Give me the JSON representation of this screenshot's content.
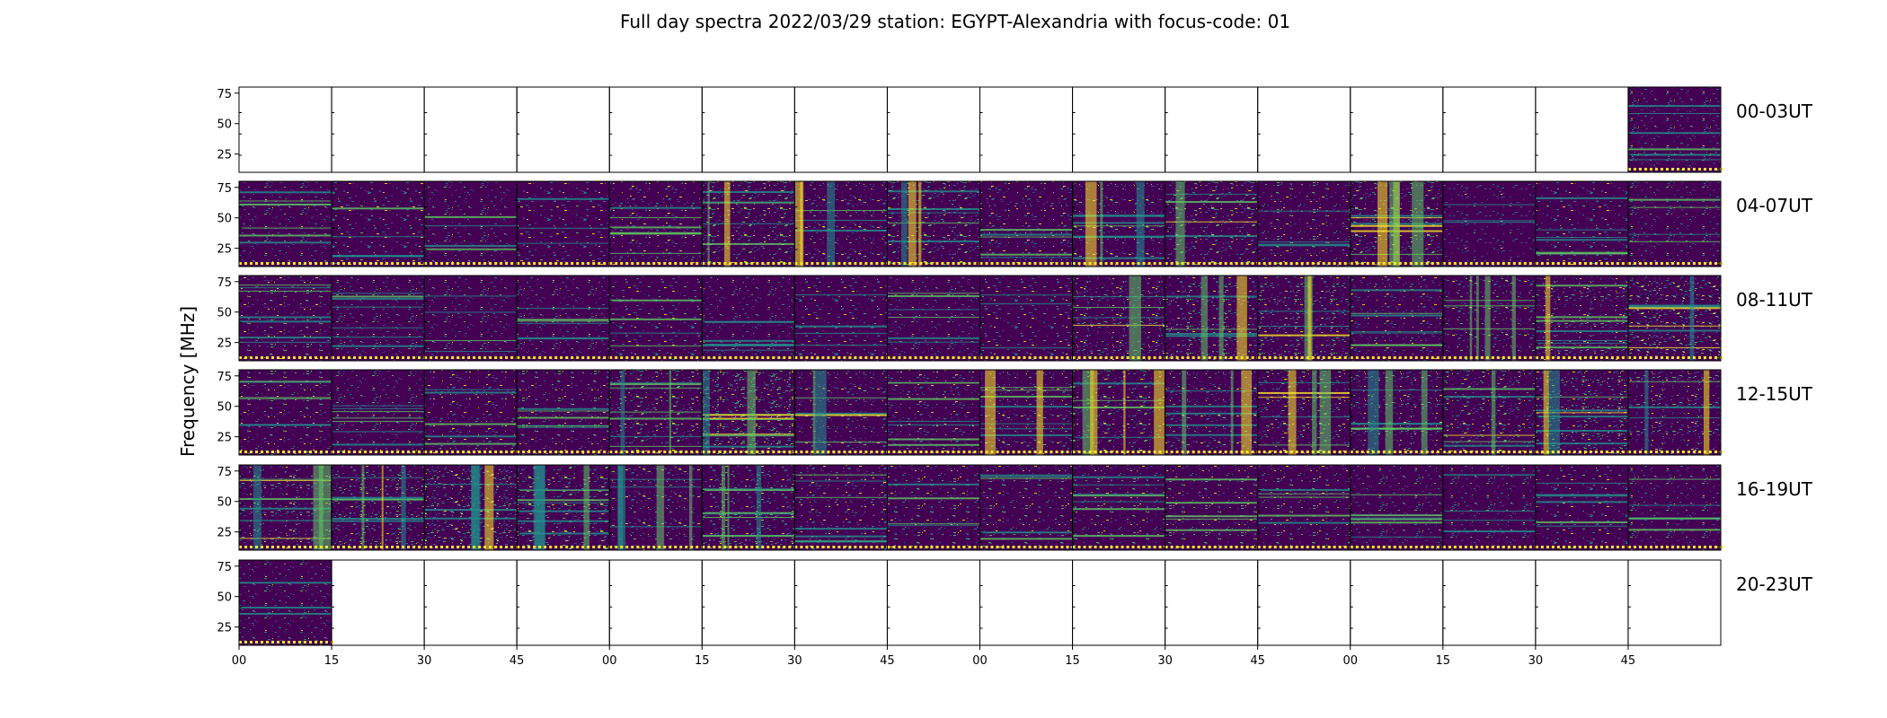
{
  "chart_data": {
    "type": "heatmap",
    "title": "Full day spectra 2022/03/29 station: EGYPT-Alexandria with focus-code: 01",
    "ylabel": "Frequency [MHz]",
    "xlabel": "",
    "y_ticks": [
      "75",
      "50",
      "25"
    ],
    "y_tick_values": [
      75,
      50,
      25
    ],
    "ylim": [
      10,
      80
    ],
    "x_ticks": [
      "00",
      "15",
      "30",
      "45",
      "00",
      "15",
      "30",
      "45",
      "00",
      "15",
      "30",
      "45",
      "00",
      "15",
      "30",
      "45"
    ],
    "rows": [
      {
        "label": "00-03UT",
        "panels": [
          0,
          0,
          0,
          0,
          0,
          0,
          0,
          0,
          0,
          0,
          0,
          0,
          0,
          0,
          0,
          1
        ],
        "intensity": [
          0,
          0,
          0,
          0,
          0,
          0,
          0,
          0,
          0,
          0,
          0,
          0,
          0,
          0,
          0,
          0.25
        ]
      },
      {
        "label": "04-07UT",
        "panels": [
          1,
          1,
          1,
          1,
          1,
          1,
          1,
          1,
          1,
          1,
          1,
          1,
          1,
          1,
          1,
          1
        ],
        "intensity": [
          0.25,
          0.2,
          0.25,
          0.2,
          0.35,
          0.45,
          0.4,
          0.45,
          0.35,
          0.4,
          0.45,
          0.3,
          0.45,
          0.15,
          0.2,
          0.25
        ]
      },
      {
        "label": "08-11UT",
        "panels": [
          1,
          1,
          1,
          1,
          1,
          1,
          1,
          1,
          1,
          1,
          1,
          1,
          1,
          1,
          1,
          1
        ],
        "intensity": [
          0.3,
          0.25,
          0.25,
          0.25,
          0.2,
          0.25,
          0.2,
          0.25,
          0.2,
          0.5,
          0.55,
          0.55,
          0.35,
          0.4,
          0.5,
          0.6
        ]
      },
      {
        "label": "12-15UT",
        "panels": [
          1,
          1,
          1,
          1,
          1,
          1,
          1,
          1,
          1,
          1,
          1,
          1,
          1,
          1,
          1,
          1
        ],
        "intensity": [
          0.3,
          0.25,
          0.35,
          0.3,
          0.45,
          0.7,
          0.4,
          0.35,
          0.4,
          0.45,
          0.4,
          0.45,
          0.5,
          0.45,
          0.55,
          0.5
        ]
      },
      {
        "label": "16-19UT",
        "panels": [
          1,
          1,
          1,
          1,
          1,
          1,
          1,
          1,
          1,
          1,
          1,
          1,
          1,
          1,
          1,
          1
        ],
        "intensity": [
          0.5,
          0.55,
          0.6,
          0.45,
          0.4,
          0.55,
          0.35,
          0.3,
          0.3,
          0.3,
          0.3,
          0.3,
          0.25,
          0.25,
          0.2,
          0.25
        ]
      },
      {
        "label": "20-23UT",
        "panels": [
          1,
          0,
          0,
          0,
          0,
          0,
          0,
          0,
          0,
          0,
          0,
          0,
          0,
          0,
          0,
          0
        ],
        "intensity": [
          0.25,
          0,
          0,
          0,
          0,
          0,
          0,
          0,
          0,
          0,
          0,
          0,
          0,
          0,
          0,
          0
        ]
      }
    ],
    "colormap": [
      "#440154",
      "#3b528b",
      "#21918c",
      "#5ec962",
      "#fde725"
    ],
    "grid": false,
    "legend": "none"
  }
}
